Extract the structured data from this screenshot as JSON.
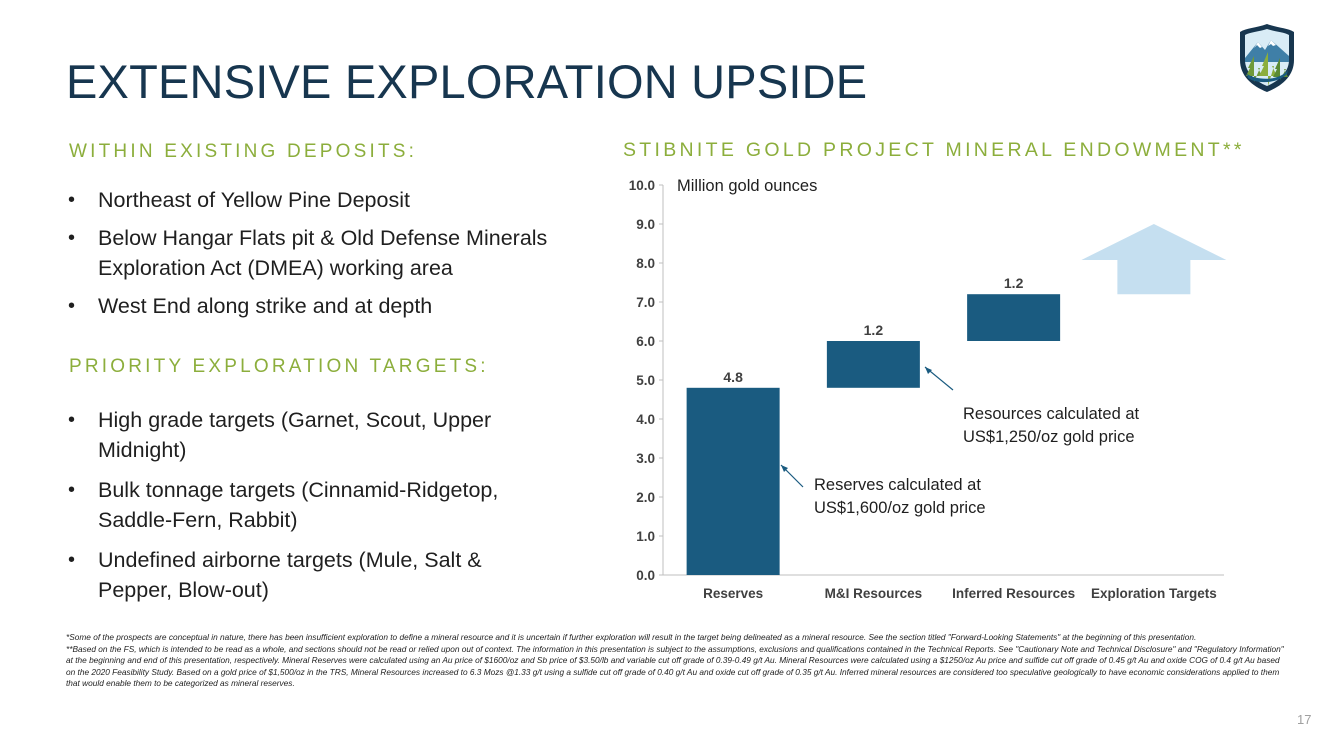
{
  "title": "EXTENSIVE EXPLORATION UPSIDE",
  "left": {
    "heading1": "WITHIN EXISTING DEPOSITS:",
    "bullets1": [
      "Northeast of Yellow Pine Deposit",
      "Below Hangar Flats pit & Old Defense Minerals Exploration Act (DMEA) working area",
      "West End along strike and at depth"
    ],
    "heading2": "PRIORITY EXPLORATION TARGETS:",
    "bullets2": [
      "High grade targets (Garnet, Scout, Upper Midnight)",
      "Bulk tonnage targets (Cinnamid-Ridgetop, Saddle-Fern, Rabbit)",
      "Undefined airborne targets (Mule, Salt & Pepper, Blow-out)"
    ]
  },
  "chart_title": "STIBNITE GOLD PROJECT MINERAL ENDOWMENT**",
  "chart_data": {
    "type": "bar",
    "subtype": "waterfall",
    "ylabel": "Million gold ounces",
    "ylim": [
      0,
      10
    ],
    "ytick_labels": [
      "0.0",
      "1.0",
      "2.0",
      "3.0",
      "4.0",
      "5.0",
      "6.0",
      "7.0",
      "8.0",
      "9.0",
      "10.0"
    ],
    "categories": [
      "Reserves",
      "M&I Resources",
      "Inferred Resources",
      "Exploration Targets"
    ],
    "values": [
      4.8,
      1.2,
      1.2,
      null
    ],
    "data_labels": [
      "4.8",
      "1.2",
      "1.2",
      ""
    ],
    "bases": [
      0,
      4.8,
      6.0,
      7.2
    ],
    "exploration_arrow_top": 9.0,
    "bar_color": "#1a5b80",
    "arrow_color": "#c5dff0",
    "annotations": [
      {
        "text_lines": [
          "Resources calculated at",
          "US$1,250/oz gold price"
        ],
        "points_to": "M&I Resources"
      },
      {
        "text_lines": [
          "Reserves calculated at",
          "US$1,600/oz gold price"
        ],
        "points_to": "Reserves"
      }
    ],
    "grid": false,
    "legend": "none"
  },
  "footnote1": "*Some of the prospects are conceptual in nature, there has been insufficient exploration to define a mineral resource and it is uncertain if further exploration will result in the target being delineated as a mineral resource. See the section titled \"Forward-Looking Statements\" at the beginning of this presentation.",
  "footnote2": "**Based on the FS, which is intended to be read as a whole, and sections should not be read or relied upon out of context. The information in this presentation is subject to the assumptions, exclusions and qualifications contained in the Technical Reports. See \"Cautionary Note and Technical Disclosure\" and \"Regulatory Information\" at the beginning and end of this presentation, respectively. Mineral Reserves were calculated using an Au price of $1600/oz and Sb price of $3.50/lb and variable cut off grade of 0.39-0.49 g/t Au. Mineral Resources were calculated using a $1250/oz Au price and sulfide cut off grade of 0.45 g/t Au and oxide COG of 0.4 g/t Au based on the 2020 Feasibility Study. Based on a gold price of $1,500/oz in the TRS, Mineral Resources increased to 6.3 Mozs @1.33 g/t using a sulfide cut off grade of 0.40 g/t Au and oxide cut off grade of 0.35 g/t Au. Inferred mineral resources are considered too speculative geologically to have economic considerations applied to them that would enable them to be categorized as mineral reserves.",
  "page_number": "17",
  "logo_icon": "mountain-shield-logo-icon"
}
